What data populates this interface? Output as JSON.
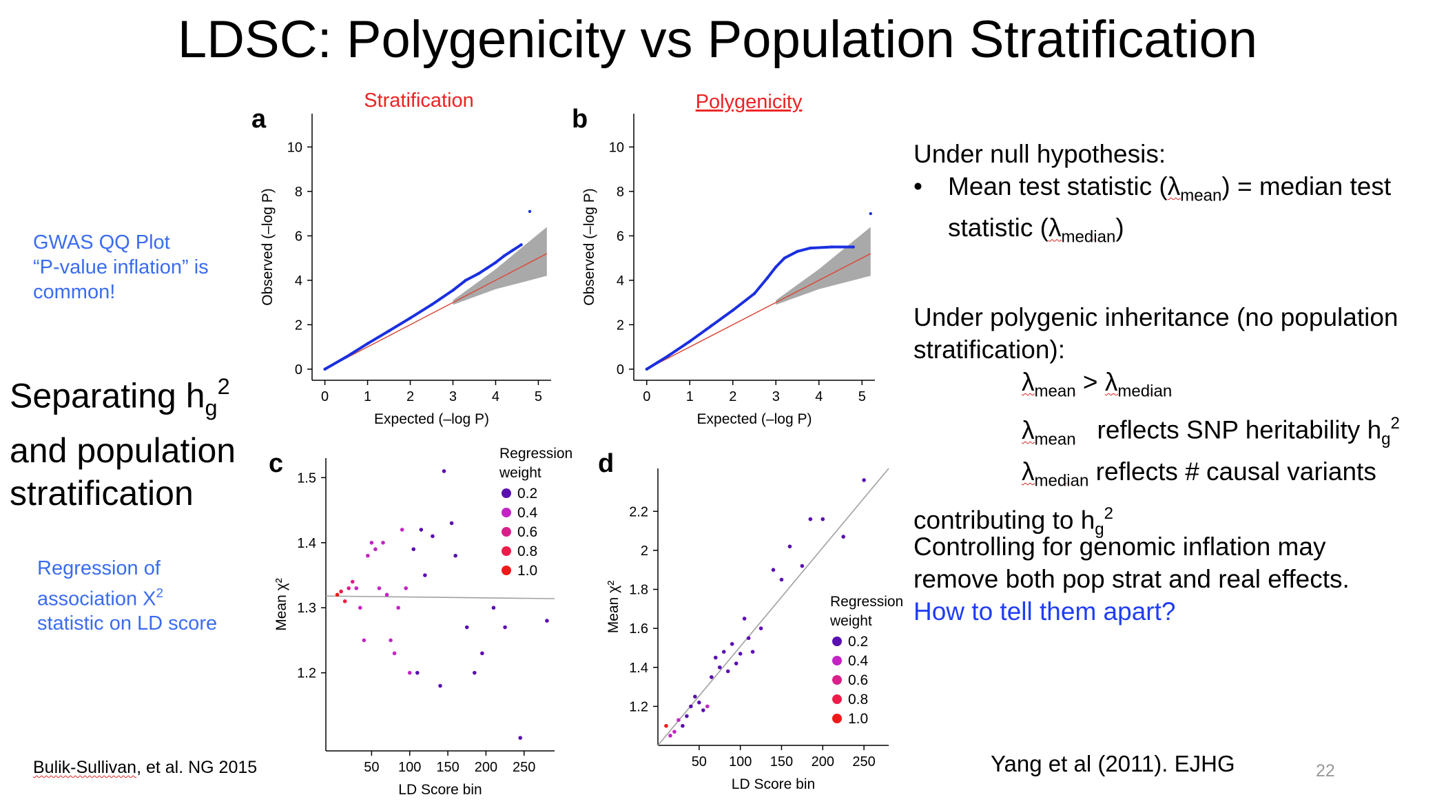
{
  "title": "LDSC: Polygenicity vs Population Stratification",
  "left": {
    "qq_note": [
      "GWAS QQ Plot",
      "“P-value inflation” is",
      "common!"
    ],
    "separating": {
      "line1": "Separating h",
      "sub": "g",
      "sup": "2",
      "line2": "and population",
      "line3": "stratification"
    },
    "regression_note": {
      "line1": "Regression of",
      "line2_pre": "association X",
      "line2_sup": "2",
      "line3": "statistic on LD score"
    },
    "citation": "Bulik-Sullivan, et al. NG 2015"
  },
  "right": {
    "null_heading": "Under null hypothesis:",
    "bullet": "•",
    "null_line1_pre": "Mean test statistic (",
    "null_line1_sub": "mean",
    "null_line1_post": ") = median test",
    "null_line2_pre": "statistic (",
    "null_line2_sub": "median",
    "null_line2_post": ")",
    "lambda": "λ",
    "poly_line1": "Under polygenic inheritance (no population",
    "poly_line2": "stratification):",
    "lam_mean": "mean",
    "gt": " > ",
    "lam_median": "median",
    "reflects_h": "reflects SNP heritability h",
    "h_sub": "g",
    "h_sup": "2",
    "reflects_causal": "reflects # causal variants",
    "contributing": "contributing to h",
    "control_line1": "Controlling for genomic inflation may",
    "control_line2": "remove both pop strat and real effects.",
    "question": "How to tell them apart?",
    "citation": "Yang et al (2011). EJHG",
    "page_number": "22"
  },
  "colors": {
    "question_blue": "#1f3df5",
    "note_blue": "#3a6cf0",
    "panel_title_red": "#ee2222"
  },
  "chart_data": [
    {
      "panel": "a",
      "type": "scatter",
      "title": "Stratification",
      "xlabel": "Expected (–log P)",
      "ylabel": "Observed (–log P)",
      "xlim": [
        -0.3,
        5.3
      ],
      "ylim": [
        -0.5,
        11.5
      ],
      "xticks": [
        0,
        1,
        2,
        3,
        4,
        5
      ],
      "yticks": [
        0,
        2,
        4,
        6,
        8,
        10
      ],
      "points": [
        [
          0,
          0
        ],
        [
          0.5,
          0.55
        ],
        [
          1,
          1.15
        ],
        [
          1.5,
          1.72
        ],
        [
          2,
          2.3
        ],
        [
          2.5,
          2.9
        ],
        [
          3,
          3.55
        ],
        [
          3.3,
          4.0
        ],
        [
          3.6,
          4.3
        ],
        [
          3.8,
          4.55
        ],
        [
          4.0,
          4.8
        ],
        [
          4.2,
          5.1
        ],
        [
          4.4,
          5.35
        ],
        [
          4.6,
          5.6
        ],
        [
          4.8,
          7.1
        ]
      ],
      "null_line": [
        [
          0,
          0
        ],
        [
          5.2,
          5.2
        ]
      ],
      "ci_upper": [
        [
          3,
          3.1
        ],
        [
          4,
          4.5
        ],
        [
          5.2,
          6.4
        ]
      ],
      "ci_lower": [
        [
          3,
          2.9
        ],
        [
          4,
          3.6
        ],
        [
          5.2,
          4.2
        ]
      ]
    },
    {
      "panel": "b",
      "type": "scatter",
      "title": "Polygenicity",
      "xlabel": "Expected (–log P)",
      "ylabel": "Observed (–log P)",
      "xlim": [
        -0.3,
        5.3
      ],
      "ylim": [
        -0.5,
        11.5
      ],
      "xticks": [
        0,
        1,
        2,
        3,
        4,
        5
      ],
      "yticks": [
        0,
        2,
        4,
        6,
        8,
        10
      ],
      "points": [
        [
          0,
          0
        ],
        [
          0.5,
          0.6
        ],
        [
          1,
          1.25
        ],
        [
          1.5,
          1.95
        ],
        [
          2,
          2.65
        ],
        [
          2.5,
          3.4
        ],
        [
          2.8,
          4.1
        ],
        [
          3.0,
          4.6
        ],
        [
          3.2,
          5.0
        ],
        [
          3.5,
          5.3
        ],
        [
          3.8,
          5.45
        ],
        [
          4.3,
          5.5
        ],
        [
          4.8,
          5.5
        ],
        [
          5.2,
          7.0
        ]
      ],
      "null_line": [
        [
          0,
          0
        ],
        [
          5.2,
          5.2
        ]
      ],
      "ci_upper": [
        [
          3,
          3.1
        ],
        [
          4,
          4.5
        ],
        [
          5.2,
          6.4
        ]
      ],
      "ci_lower": [
        [
          3,
          2.9
        ],
        [
          4,
          3.6
        ],
        [
          5.2,
          4.2
        ]
      ]
    },
    {
      "panel": "c",
      "type": "scatter",
      "xlabel": "LD Score bin",
      "ylabel": "Mean χ²",
      "xlim": [
        -10,
        290
      ],
      "ylim": [
        1.08,
        1.53
      ],
      "xticks": [
        50,
        100,
        150,
        200,
        250
      ],
      "yticks": [
        1.2,
        1.3,
        1.4,
        1.5
      ],
      "legend_title": [
        "Regression",
        "weight"
      ],
      "legend": [
        {
          "label": "0.2",
          "color": "#5a0fb0"
        },
        {
          "label": "0.4",
          "color": "#c424c4"
        },
        {
          "label": "0.6",
          "color": "#d9208a"
        },
        {
          "label": "0.8",
          "color": "#ee1c4a"
        },
        {
          "label": "1.0",
          "color": "#ee1a1a"
        }
      ],
      "fit_line": [
        [
          -10,
          1.318
        ],
        [
          290,
          1.314
        ]
      ],
      "points": [
        [
          5,
          1.32
        ],
        [
          10,
          1.325
        ],
        [
          15,
          1.31
        ],
        [
          20,
          1.33
        ],
        [
          25,
          1.34
        ],
        [
          30,
          1.33
        ],
        [
          35,
          1.3
        ],
        [
          40,
          1.25
        ],
        [
          45,
          1.38
        ],
        [
          50,
          1.4
        ],
        [
          55,
          1.39
        ],
        [
          60,
          1.33
        ],
        [
          65,
          1.4
        ],
        [
          70,
          1.32
        ],
        [
          75,
          1.25
        ],
        [
          80,
          1.23
        ],
        [
          85,
          1.3
        ],
        [
          90,
          1.42
        ],
        [
          95,
          1.33
        ],
        [
          100,
          1.2
        ],
        [
          105,
          1.39
        ],
        [
          110,
          1.2
        ],
        [
          115,
          1.42
        ],
        [
          120,
          1.35
        ],
        [
          130,
          1.41
        ],
        [
          140,
          1.18
        ],
        [
          145,
          1.51
        ],
        [
          155,
          1.43
        ],
        [
          160,
          1.38
        ],
        [
          175,
          1.27
        ],
        [
          185,
          1.2
        ],
        [
          195,
          1.23
        ],
        [
          210,
          1.3
        ],
        [
          225,
          1.27
        ],
        [
          245,
          1.1
        ],
        [
          280,
          1.28
        ]
      ],
      "point_weights": [
        1.0,
        0.8,
        0.8,
        0.6,
        0.6,
        0.4,
        0.4,
        0.4,
        0.4,
        0.4,
        0.4,
        0.4,
        0.4,
        0.4,
        0.4,
        0.4,
        0.4,
        0.4,
        0.4,
        0.4,
        0.2,
        0.2,
        0.2,
        0.2,
        0.2,
        0.2,
        0.2,
        0.2,
        0.2,
        0.2,
        0.2,
        0.2,
        0.2,
        0.2,
        0.2,
        0.2
      ]
    },
    {
      "panel": "d",
      "type": "scatter",
      "xlabel": "LD Score bin",
      "ylabel": "Mean χ²",
      "xlim": [
        0,
        280
      ],
      "ylim": [
        1.0,
        2.42
      ],
      "xticks": [
        50,
        100,
        150,
        200,
        250
      ],
      "yticks": [
        1.2,
        1.4,
        1.6,
        1.8,
        2.0,
        2.2
      ],
      "legend_title": [
        "Regression",
        "weight"
      ],
      "legend": [
        {
          "label": "0.2",
          "color": "#5a0fb0"
        },
        {
          "label": "0.4",
          "color": "#c424c4"
        },
        {
          "label": "0.6",
          "color": "#d9208a"
        },
        {
          "label": "0.8",
          "color": "#ee1c4a"
        },
        {
          "label": "1.0",
          "color": "#ee1a1a"
        }
      ],
      "fit_line": [
        [
          0,
          1.0
        ],
        [
          280,
          2.42
        ]
      ],
      "points": [
        [
          10,
          1.1
        ],
        [
          15,
          1.05
        ],
        [
          20,
          1.07
        ],
        [
          25,
          1.13
        ],
        [
          30,
          1.1
        ],
        [
          35,
          1.15
        ],
        [
          40,
          1.2
        ],
        [
          45,
          1.25
        ],
        [
          50,
          1.22
        ],
        [
          55,
          1.18
        ],
        [
          60,
          1.2
        ],
        [
          65,
          1.35
        ],
        [
          70,
          1.45
        ],
        [
          75,
          1.4
        ],
        [
          80,
          1.48
        ],
        [
          85,
          1.38
        ],
        [
          90,
          1.52
        ],
        [
          95,
          1.42
        ],
        [
          100,
          1.47
        ],
        [
          105,
          1.65
        ],
        [
          110,
          1.55
        ],
        [
          115,
          1.48
        ],
        [
          125,
          1.6
        ],
        [
          140,
          1.9
        ],
        [
          150,
          1.85
        ],
        [
          160,
          2.02
        ],
        [
          175,
          1.92
        ],
        [
          185,
          2.16
        ],
        [
          200,
          2.16
        ],
        [
          225,
          2.07
        ],
        [
          250,
          2.36
        ]
      ],
      "point_weights": [
        1.0,
        0.4,
        0.4,
        0.4,
        0.2,
        0.2,
        0.2,
        0.2,
        0.2,
        0.2,
        0.4,
        0.2,
        0.2,
        0.2,
        0.2,
        0.2,
        0.2,
        0.2,
        0.2,
        0.2,
        0.2,
        0.2,
        0.2,
        0.2,
        0.2,
        0.2,
        0.2,
        0.2,
        0.2,
        0.2,
        0.2
      ]
    }
  ]
}
